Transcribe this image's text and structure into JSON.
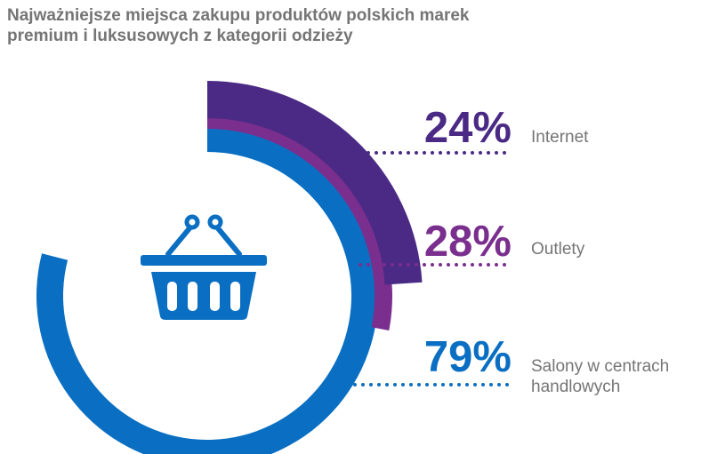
{
  "title_lines": [
    "Najważniejsze miejsca zakupu produktów polskich marek",
    "premium i luksusowych z kategorii odzieży"
  ],
  "chart_data": {
    "type": "radial-bar",
    "title": "Najważniejsze miejsca zakupu produktów polskich marek premium i luksusowych z kategorii odzieży",
    "unit": "%",
    "series": [
      {
        "name": "Internet",
        "value": 24,
        "value_label": "24%",
        "label_lines": [
          "Internet"
        ],
        "color": "#4B2A85"
      },
      {
        "name": "Outlety",
        "value": 28,
        "value_label": "28%",
        "label_lines": [
          "Outlety"
        ],
        "color": "#7A2E8E"
      },
      {
        "name": "Salony w centrach handlowych",
        "value": 79,
        "value_label": "79%",
        "label_lines": [
          "Salony w centrach",
          "handlowych"
        ],
        "color": "#0A6FC2"
      }
    ]
  },
  "icons": {
    "center": "shopping-basket-icon"
  },
  "colors": {
    "title": "#757575",
    "label": "#757575"
  }
}
